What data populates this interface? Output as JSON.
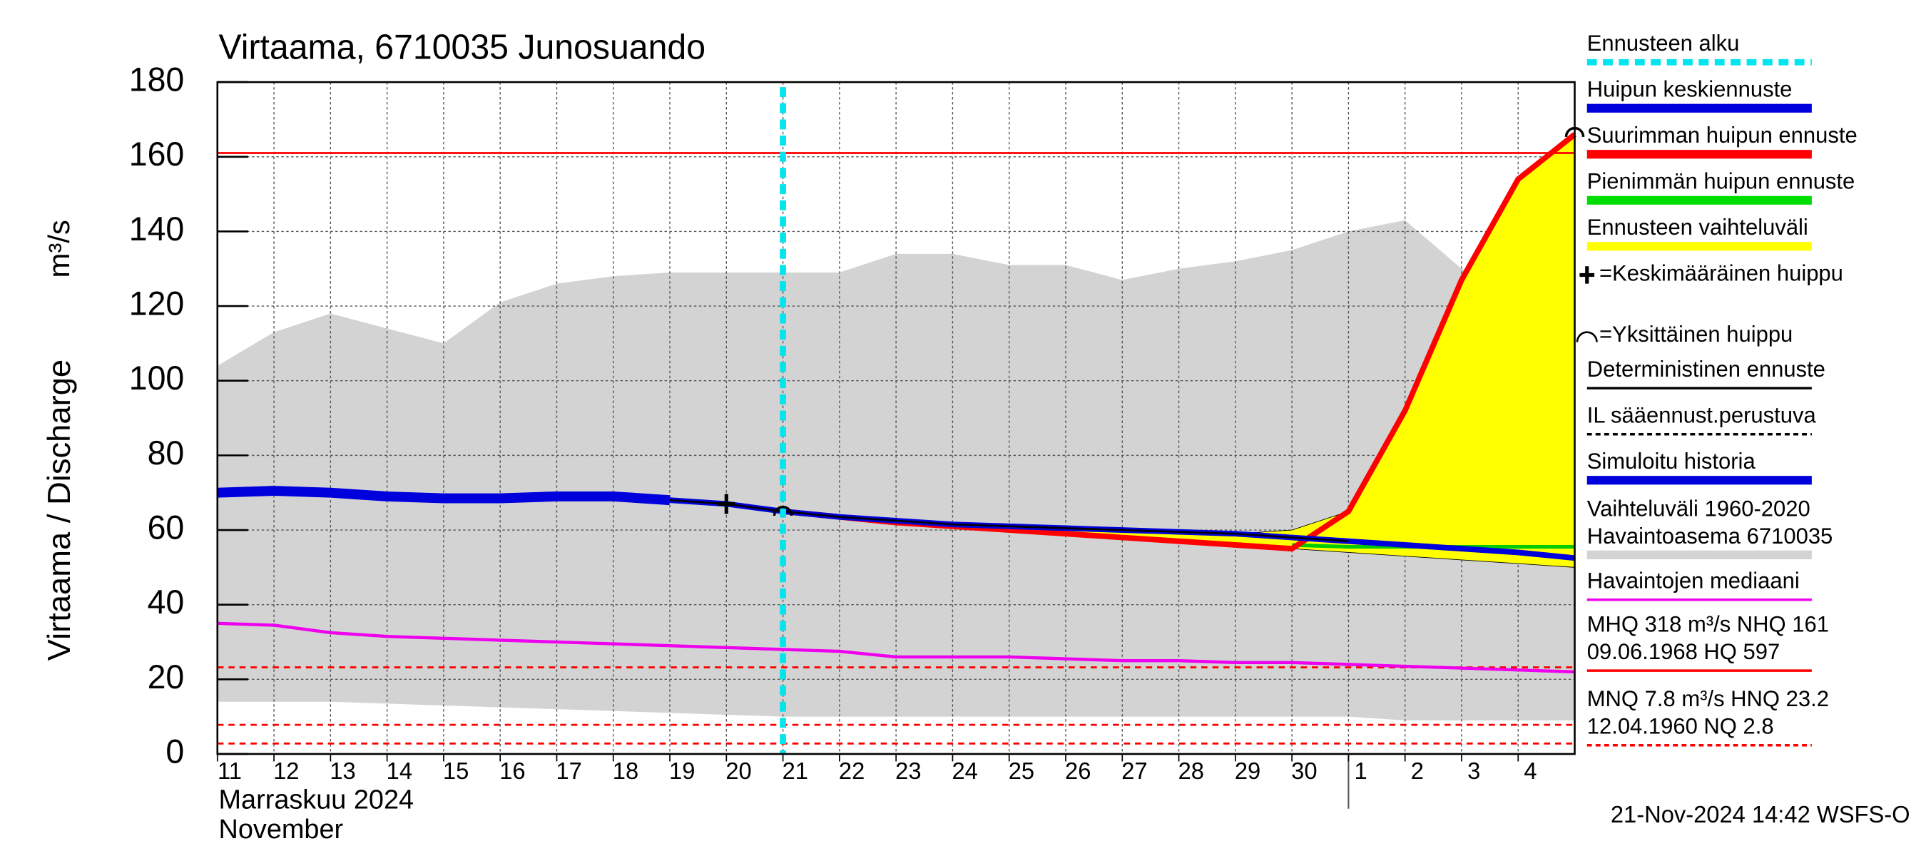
{
  "chart_data": {
    "type": "line",
    "title": "Virtaama, 6710035 Junosuando",
    "y_label": "Virtaama / Discharge",
    "y_unit": "m³/s",
    "month_label": "Marraskuu 2024",
    "month_label_en": "November",
    "footer": "21-Nov-2024 14:42 WSFS-O",
    "xlim": [
      0,
      24
    ],
    "ylim": [
      0,
      180
    ],
    "yticks": [
      0,
      20,
      40,
      60,
      80,
      100,
      120,
      140,
      160,
      180
    ],
    "xticks": [
      {
        "value": 0,
        "label": "11"
      },
      {
        "value": 1,
        "label": "12"
      },
      {
        "value": 2,
        "label": "13"
      },
      {
        "value": 3,
        "label": "14"
      },
      {
        "value": 4,
        "label": "15"
      },
      {
        "value": 5,
        "label": "16"
      },
      {
        "value": 6,
        "label": "17"
      },
      {
        "value": 7,
        "label": "18"
      },
      {
        "value": 8,
        "label": "19"
      },
      {
        "value": 9,
        "label": "20"
      },
      {
        "value": 10,
        "label": "21"
      },
      {
        "value": 11,
        "label": "22"
      },
      {
        "value": 12,
        "label": "23"
      },
      {
        "value": 13,
        "label": "24"
      },
      {
        "value": 14,
        "label": "25"
      },
      {
        "value": 15,
        "label": "26"
      },
      {
        "value": 16,
        "label": "27"
      },
      {
        "value": 17,
        "label": "28"
      },
      {
        "value": 18,
        "label": "29"
      },
      {
        "value": 19,
        "label": "30"
      },
      {
        "value": 20,
        "label": "1"
      },
      {
        "value": 21,
        "label": "2"
      },
      {
        "value": 22,
        "label": "3"
      },
      {
        "value": 23,
        "label": "4"
      }
    ],
    "month_break": 20,
    "grid": true,
    "forecast_start": 10,
    "forecast_start_color": "#00e5ee",
    "x": [
      0,
      1,
      2,
      3,
      4,
      5,
      6,
      7,
      8,
      9,
      10,
      11,
      12,
      13,
      14,
      15,
      16,
      17,
      18,
      19,
      20,
      21,
      22,
      23,
      24
    ],
    "series": [
      {
        "kind": "band",
        "color": "#d3d3d3",
        "upper": [
          104,
          113,
          118,
          114,
          110,
          121,
          126,
          128,
          129,
          129,
          129,
          129,
          134,
          134,
          131,
          131,
          127,
          130,
          132,
          135,
          140,
          143,
          130,
          122,
          121
        ],
        "lower": [
          14,
          14,
          14,
          13.5,
          13,
          12.5,
          12,
          11.5,
          11,
          10.5,
          10,
          10,
          10,
          10,
          10,
          10,
          10,
          10,
          10,
          10,
          10,
          9,
          9,
          9,
          9
        ]
      },
      {
        "kind": "band",
        "color": "#ffff00",
        "upper": [
          null,
          null,
          null,
          null,
          null,
          null,
          null,
          null,
          null,
          null,
          65,
          64,
          62.5,
          61.5,
          61,
          60.5,
          60,
          59.5,
          59,
          60,
          65,
          92,
          127,
          154,
          166
        ],
        "lower": [
          null,
          null,
          null,
          null,
          null,
          null,
          null,
          null,
          null,
          null,
          65,
          63.5,
          62,
          61,
          60,
          59,
          58,
          57,
          56,
          55,
          54,
          53,
          52,
          51,
          50
        ]
      },
      {
        "kind": "line",
        "color": "#ee00ee",
        "width": 2.5,
        "values": [
          35,
          34.5,
          32.5,
          31.5,
          31,
          30.5,
          30,
          29.5,
          29,
          28.5,
          28,
          27.5,
          26,
          26,
          26,
          25.5,
          25,
          25,
          24.5,
          24.5,
          24,
          23.5,
          23,
          22.5,
          22
        ]
      },
      {
        "kind": "line",
        "color": "#00cc00",
        "width": 3,
        "values": [
          null,
          null,
          null,
          null,
          null,
          null,
          null,
          null,
          null,
          null,
          null,
          null,
          null,
          null,
          null,
          null,
          null,
          null,
          null,
          56,
          55.5,
          55.5,
          55.5,
          55.5,
          55.5
        ]
      },
      {
        "kind": "line",
        "color": "#ff0000",
        "width": 4.5,
        "values": [
          null,
          null,
          null,
          null,
          null,
          null,
          null,
          null,
          null,
          null,
          65,
          63.5,
          62,
          61,
          60,
          59,
          58,
          57,
          56,
          55,
          65,
          92,
          127,
          154,
          166
        ]
      },
      {
        "kind": "line",
        "color": "#0000dd",
        "width": 8,
        "values": [
          70,
          70.5,
          70,
          69,
          68.5,
          68.5,
          69,
          69,
          68,
          null,
          null,
          null,
          null,
          null,
          null,
          null,
          null,
          null,
          null,
          null,
          null,
          null,
          null,
          null,
          null
        ]
      },
      {
        "kind": "line",
        "color": "#0000dd",
        "width": 4.5,
        "values": [
          null,
          null,
          null,
          null,
          null,
          null,
          null,
          null,
          68,
          67,
          65,
          63.5,
          62.5,
          61.5,
          61,
          60.5,
          60,
          59.5,
          59,
          58,
          57,
          56,
          55,
          54,
          52.5
        ]
      },
      {
        "kind": "line",
        "color": "#000000",
        "width": 1.5,
        "values": [
          null,
          null,
          null,
          null,
          null,
          null,
          null,
          null,
          68,
          67,
          65,
          63.5,
          62.5,
          61.5,
          61,
          60.5,
          60,
          59.5,
          59,
          58,
          57,
          null,
          null,
          null,
          null
        ]
      }
    ],
    "peaks": [
      {
        "x": 9,
        "value": 67,
        "symbol": "cross"
      },
      {
        "x": 10,
        "value": 65.5,
        "symbol": "arc"
      },
      {
        "x": 24,
        "value": 167,
        "symbol": "arc"
      }
    ],
    "reference_lines": [
      {
        "value": 161,
        "color": "#ff0000",
        "style": "solid"
      },
      {
        "value": 23.2,
        "color": "#ff0000",
        "style": "dashed"
      },
      {
        "value": 7.8,
        "color": "#ff0000",
        "style": "dashed"
      },
      {
        "value": 2.8,
        "color": "#ff0000",
        "style": "dashed"
      }
    ],
    "legend": [
      {
        "lines": [
          "Ennusteen alku"
        ],
        "color": "#00e5ee",
        "style": "dashed-thick"
      },
      {
        "lines": [
          "Huipun keskiennuste"
        ],
        "color": "#0000dd",
        "style": "thick"
      },
      {
        "lines": [
          "Suurimman huipun ennuste"
        ],
        "color": "#ff0000",
        "style": "thick"
      },
      {
        "lines": [
          "Pienimmän huipun ennuste"
        ],
        "color": "#00dd00",
        "style": "thick"
      },
      {
        "lines": [
          "Ennusteen vaihteluväli"
        ],
        "color": "#ffff00",
        "style": "thick"
      },
      {
        "lines": [
          "=Keskimääräinen huippu"
        ],
        "symbol": "cross"
      },
      {
        "lines": [
          "=Yksittäinen huippu"
        ],
        "symbol": "arc"
      },
      {
        "lines": [
          "Deterministinen ennuste"
        ],
        "color": "#000000",
        "style": "solid"
      },
      {
        "lines": [
          "IL sääennust.perustuva"
        ],
        "color": "#000000",
        "style": "dashed"
      },
      {
        "lines": [
          "Simuloitu historia"
        ],
        "color": "#0000dd",
        "style": "thick"
      },
      {
        "lines": [
          "Vaihteluväli 1960-2020",
          " Havaintoasema 6710035"
        ],
        "color": "#d3d3d3",
        "style": "thick"
      },
      {
        "lines": [
          "Havaintojen mediaani"
        ],
        "color": "#ee00ee",
        "style": "solid"
      },
      {
        "lines": [
          "MHQ  318 m³/s NHQ  161",
          "09.06.1968 HQ  597"
        ],
        "color": "#ff0000",
        "style": "solid"
      },
      {
        "lines": [
          "MNQ  7.8 m³/s HNQ 23.2",
          "12.04.1960 NQ  2.8"
        ],
        "color": "#ff0000",
        "style": "dashed"
      }
    ]
  }
}
